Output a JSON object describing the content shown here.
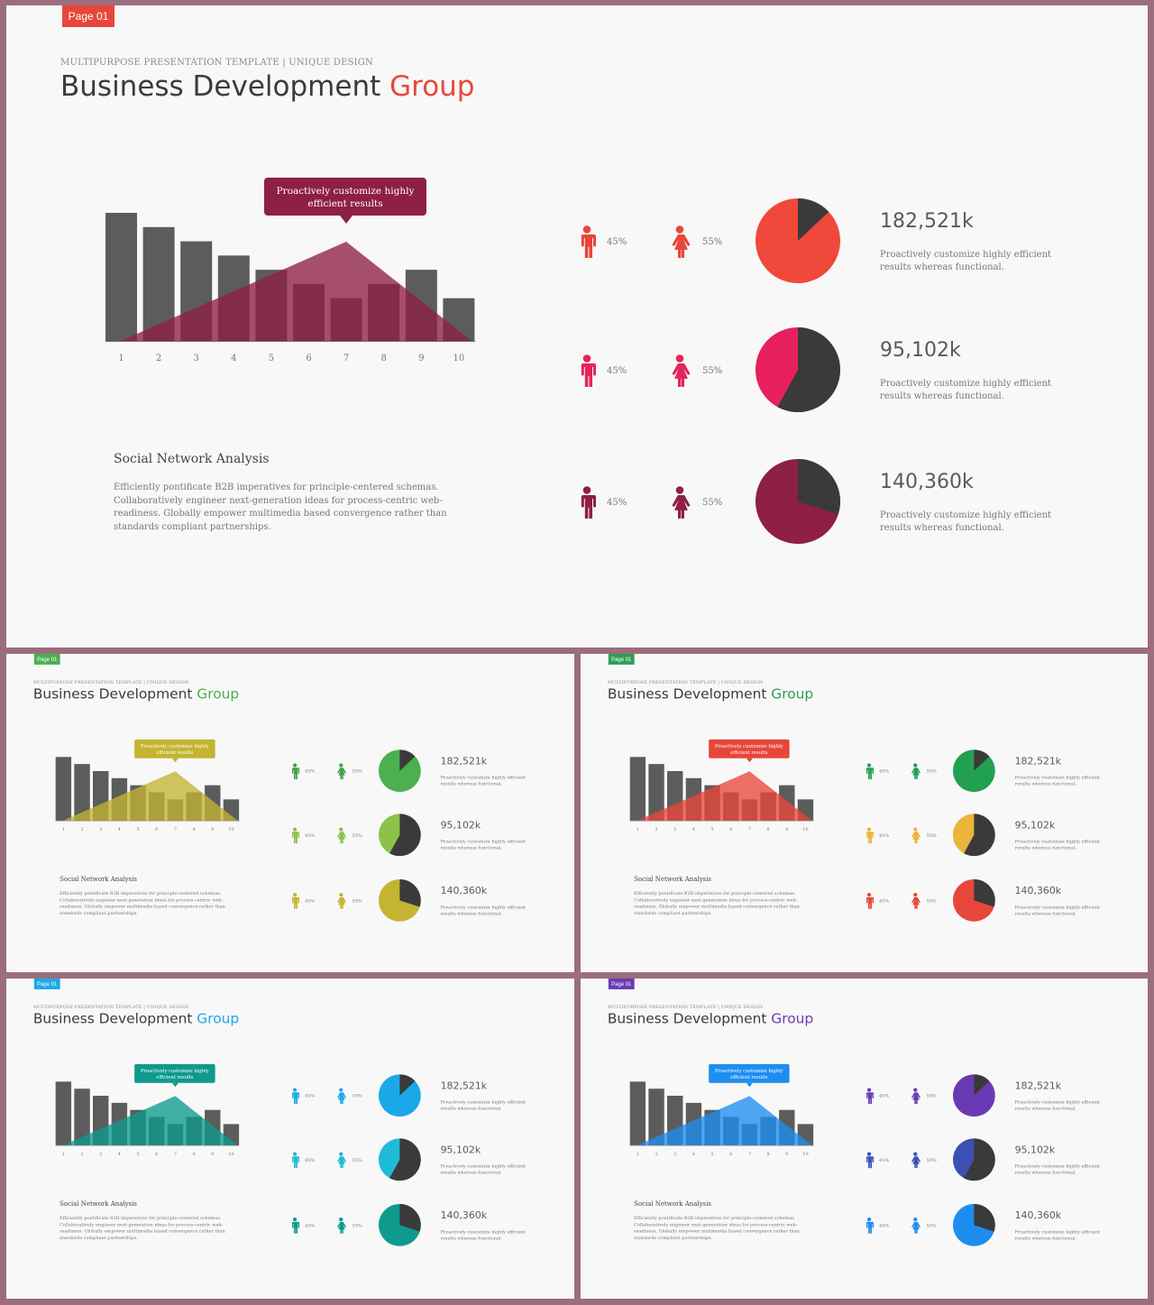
{
  "slide": {
    "page_label": "Page 01",
    "subtitle": "MULTIPURPOSE PRESENTATION TEMPLATE | UNIQUE DESIGN",
    "title_main": "Business Development",
    "title_accent": "Group",
    "callout": "Proactively customize highly efficient results",
    "section_heading": "Social Network Analysis",
    "section_text": "Efficiently pontificate B2B imperatives for principle-centered schemas. Collaboratively engineer next-generation ideas for process-centric web-readiness. Globally empower multimedia based convergence rather than standards compliant partnerships.",
    "male_percent": "45%",
    "female_percent": "55%",
    "stats": [
      {
        "value": "182,521k",
        "text": "Proactively customize highly efficient results whereas functional.",
        "pie_dark_fraction": 0.13
      },
      {
        "value": "95,102k",
        "text": "Proactively customize highly efficient results whereas functional.",
        "pie_dark_fraction": 0.58
      },
      {
        "value": "140,360k",
        "text": "Proactively customize highly efficient results whereas functional.",
        "pie_dark_fraction": 0.3
      }
    ],
    "chart_data": {
      "type": "bar",
      "categories": [
        "1",
        "2",
        "3",
        "4",
        "5",
        "6",
        "7",
        "8",
        "9",
        "10"
      ],
      "values": [
        9,
        8,
        7,
        6,
        5,
        4,
        3,
        4,
        5,
        3
      ],
      "ylim": [
        0,
        9
      ],
      "overlay": "triangle"
    }
  },
  "variants": [
    {
      "name": "main",
      "badge": "#e8463a",
      "accent": "#e8463a",
      "chart": "#8e1f45",
      "person_colors": [
        "#e8463a",
        "#e4245a",
        "#8e1f45"
      ],
      "pie_colors": [
        "#f0483a",
        "#e8205d",
        "#8e1f45"
      ]
    },
    {
      "name": "green",
      "badge": "#4caf50",
      "accent": "#4caf50",
      "chart": "#c3b431",
      "person_colors": [
        "#43a047",
        "#8bc34a",
        "#c3b431"
      ],
      "pie_colors": [
        "#4caf50",
        "#8bc34a",
        "#c3b431"
      ]
    },
    {
      "name": "red-green",
      "badge": "#2e9e55",
      "accent": "#2e9e55",
      "chart": "#e8463a",
      "person_colors": [
        "#22a052",
        "#ebb43a",
        "#e8463a"
      ],
      "pie_colors": [
        "#22a052",
        "#ebb43a",
        "#e8463a"
      ]
    },
    {
      "name": "teal",
      "badge": "#1ba8e8",
      "accent": "#1ba8e8",
      "chart": "#0e9a8c",
      "person_colors": [
        "#1ba8e8",
        "#1ebbd7",
        "#0e9a8c"
      ],
      "pie_colors": [
        "#1ba8e8",
        "#1ebbd7",
        "#0e9a8c"
      ]
    },
    {
      "name": "purple",
      "badge": "#6a3ab5",
      "accent": "#6a3ab5",
      "chart": "#1d8ef0",
      "person_colors": [
        "#6a3ab5",
        "#3b4fb5",
        "#1d8ef0"
      ],
      "pie_colors": [
        "#6a3ab5",
        "#3b4fb5",
        "#1d8ef0"
      ]
    }
  ]
}
